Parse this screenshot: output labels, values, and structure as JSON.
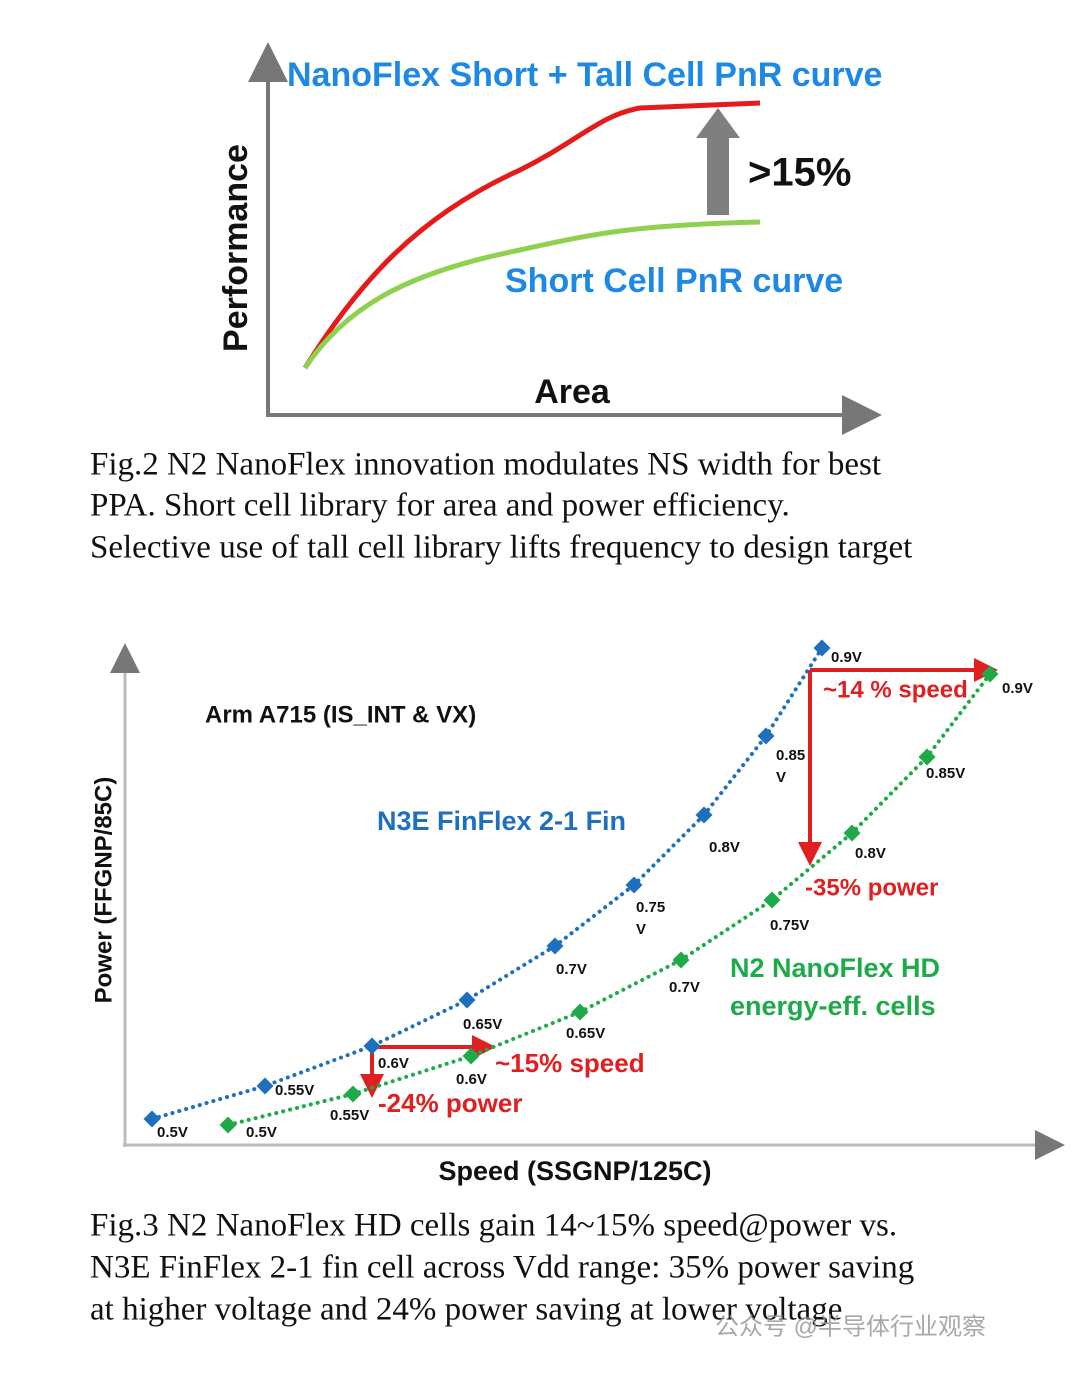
{
  "fig2": {
    "title": "NanoFlex Short + Tall Cell  PnR curve",
    "gain_label": ">15%",
    "lower_curve_label": "Short Cell PnR curve",
    "y_axis_label": "Performance",
    "x_axis_label": "Area",
    "caption": [
      "Fig.2  N2 NanoFlex innovation modulates NS width for best",
      "PPA.  Short cell library for area and power efficiency.",
      "Selective use of tall cell library lifts frequency to design target"
    ]
  },
  "fig3": {
    "annotation": "Arm A715 (IS_INT & VX)",
    "series": [
      {
        "name": [
          "N3E FinFlex 2-1 Fin"
        ],
        "color": "#1f6fbf",
        "point_labels": [
          "0.5V",
          "0.55V",
          "0.6V",
          "0.65V",
          "0.7V",
          [
            "0.75",
            "V"
          ],
          "0.8V",
          [
            "0.85",
            "V"
          ],
          "0.9V"
        ]
      },
      {
        "name": [
          "N2 NanoFlex HD",
          "energy-eff. cells"
        ],
        "color": "#1faa4a",
        "point_labels": [
          "0.5V",
          "0.55V",
          "0.6V",
          "0.65V",
          "0.7V",
          "0.75V",
          "0.8V",
          "0.85V",
          "0.9V"
        ]
      }
    ],
    "high_speed_label": "~14 % speed",
    "high_power_label": "-35% power",
    "low_speed_label": "~15% speed",
    "low_power_label": "-24% power",
    "y_axis_label": "Power (FFGNP/85C)",
    "x_axis_label": "Speed (SSGNP/125C)",
    "caption": [
      "Fig.3  N2 NanoFlex HD cells gain 14~15% speed@power vs.",
      "N3E FinFlex 2-1 fin cell across Vdd range: 35% power saving",
      "at higher voltage and 24% power saving at lower voltage"
    ]
  },
  "watermark": "公众号 @半导体行业观察"
}
